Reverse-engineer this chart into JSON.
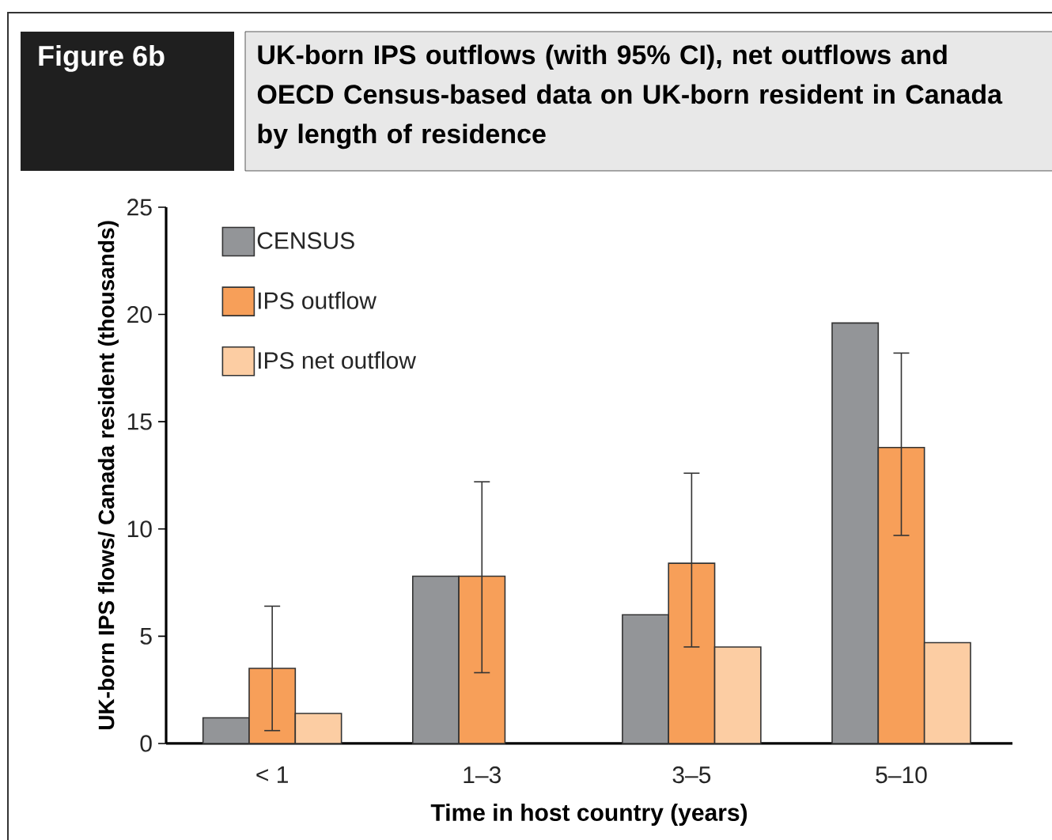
{
  "chart_data": {
    "type": "bar",
    "title": "Figure 6b",
    "subtitle": "UK-born IPS outflows (with 95% CI), net outflows and OECD Census-based data on UK-born resident in Canada by length of residence",
    "xlabel": "Time in host country (years)",
    "ylabel": "UK-born IPS flows/ Canada resident (thousands)",
    "categories": [
      "< 1",
      "1–3",
      "3–5",
      "5–10"
    ],
    "series": [
      {
        "name": "CENSUS",
        "color": "#939598",
        "values": [
          1.2,
          7.8,
          6.0,
          19.6
        ]
      },
      {
        "name": "IPS outflow",
        "color": "#f79f59",
        "values": [
          3.5,
          7.8,
          8.4,
          13.8
        ],
        "errors": [
          [
            0.6,
            6.4
          ],
          [
            3.3,
            12.2
          ],
          [
            4.5,
            12.6
          ],
          [
            9.7,
            18.2
          ]
        ]
      },
      {
        "name": "IPS net outflow",
        "color": "#fccda3",
        "values": [
          1.4,
          null,
          4.5,
          4.7
        ]
      }
    ],
    "ylim": [
      0,
      25
    ],
    "yticks": [
      0,
      5,
      10,
      15,
      20,
      25
    ],
    "legend": "top left",
    "grid": false
  }
}
